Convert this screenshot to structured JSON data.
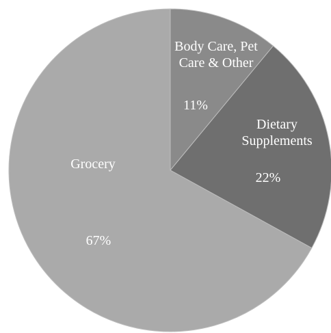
{
  "chart_data": {
    "type": "pie",
    "title": "",
    "slices": [
      {
        "name": "Body Care, Pet Care & Other",
        "name_lines": [
          "Body Care, Pet",
          "Care & Other"
        ],
        "value": 11,
        "value_label": "11%",
        "color": "#8a8a8a"
      },
      {
        "name": "Dietary Supplements",
        "name_lines": [
          "Dietary",
          "Supplements"
        ],
        "value": 22,
        "value_label": "22%",
        "color": "#6f6f6f"
      },
      {
        "name": "Grocery",
        "name_lines": [
          "Grocery"
        ],
        "value": 67,
        "value_label": "67%",
        "color": "#aaaaaa"
      }
    ],
    "start_angle": "12 o'clock",
    "direction": "clockwise",
    "legend": "none",
    "label_color": "#ffffff",
    "border_color": "#bdbdbd"
  }
}
